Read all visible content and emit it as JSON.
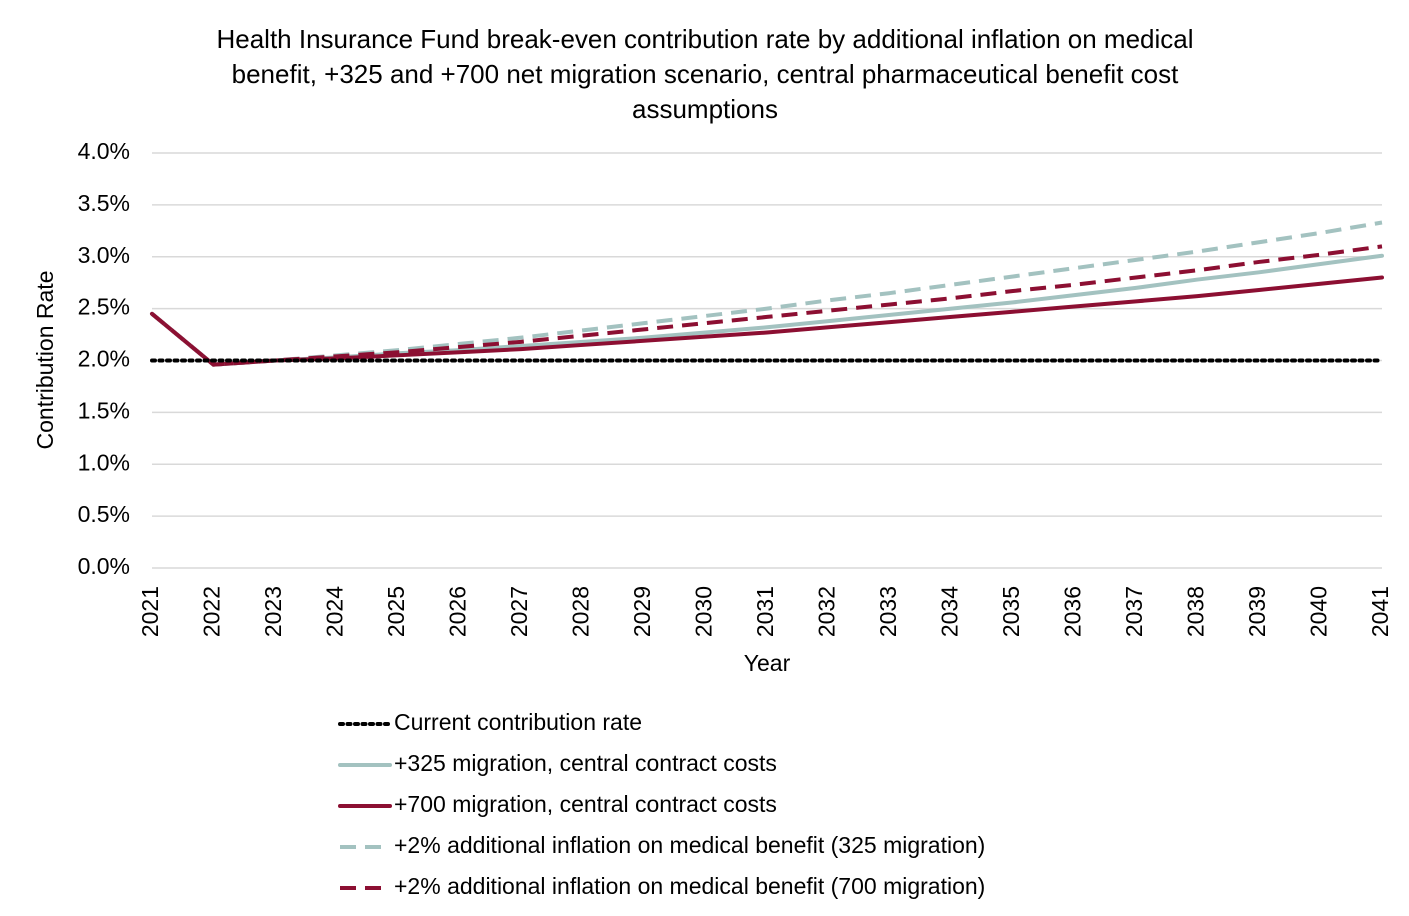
{
  "chart_data": {
    "type": "line",
    "title": "Health Insurance Fund break-even contribution rate by additional inflation on medical benefit, +325 and +700 net migration scenario, central pharmaceutical benefit cost assumptions",
    "x_label": "Year",
    "y_label": "Contribution Rate",
    "categories": [
      "2021",
      "2022",
      "2023",
      "2024",
      "2025",
      "2026",
      "2027",
      "2028",
      "2029",
      "2030",
      "2031",
      "2032",
      "2033",
      "2034",
      "2035",
      "2036",
      "2037",
      "2038",
      "2039",
      "2040",
      "2041"
    ],
    "ylim": [
      0,
      4
    ],
    "yticks": [
      {
        "value": 0,
        "label": "0.0%"
      },
      {
        "value": 0.5,
        "label": "0.5%"
      },
      {
        "value": 1,
        "label": "1.0%"
      },
      {
        "value": 1.5,
        "label": "1.5%"
      },
      {
        "value": 2,
        "label": "2.0%"
      },
      {
        "value": 2.5,
        "label": "2.5%"
      },
      {
        "value": 3,
        "label": "3.0%"
      },
      {
        "value": 3.5,
        "label": "3.5%"
      },
      {
        "value": 4,
        "label": "4.0%"
      }
    ],
    "grid": true,
    "series": [
      {
        "name": "Current contribution rate",
        "color": "#000000",
        "linestyle": "dotted",
        "values": [
          2,
          2,
          2,
          2,
          2,
          2,
          2,
          2,
          2,
          2,
          2,
          2,
          2,
          2,
          2,
          2,
          2,
          2,
          2,
          2,
          2
        ]
      },
      {
        "name": "+325 migration, central contract costs",
        "color": "#a3c2c0",
        "linestyle": "solid",
        "values": [
          2.45,
          1.96,
          2.0,
          2.03,
          2.07,
          2.1,
          2.14,
          2.18,
          2.22,
          2.27,
          2.32,
          2.38,
          2.44,
          2.5,
          2.56,
          2.63,
          2.7,
          2.78,
          2.85,
          2.93,
          3.01
        ]
      },
      {
        "name": "+700 migration, central contract costs",
        "color": "#8c0f32",
        "linestyle": "solid",
        "values": [
          2.45,
          1.96,
          2.0,
          2.02,
          2.05,
          2.08,
          2.11,
          2.15,
          2.19,
          2.23,
          2.27,
          2.32,
          2.37,
          2.42,
          2.47,
          2.52,
          2.57,
          2.62,
          2.68,
          2.74,
          2.8
        ]
      },
      {
        "name": "+2% additional inflation on medical benefit (325 migration)",
        "color": "#a3c2c0",
        "linestyle": "dashed",
        "values": [
          2.45,
          1.96,
          2.0,
          2.05,
          2.1,
          2.16,
          2.22,
          2.29,
          2.36,
          2.43,
          2.5,
          2.58,
          2.65,
          2.73,
          2.81,
          2.89,
          2.97,
          3.05,
          3.14,
          3.23,
          3.33
        ]
      },
      {
        "name": "+2% additional inflation on medical benefit (700 migration)",
        "color": "#8c0f32",
        "linestyle": "dashed",
        "values": [
          2.45,
          1.96,
          2.0,
          2.04,
          2.08,
          2.13,
          2.18,
          2.24,
          2.3,
          2.36,
          2.42,
          2.48,
          2.54,
          2.6,
          2.67,
          2.73,
          2.8,
          2.87,
          2.95,
          3.02,
          3.1
        ]
      }
    ]
  }
}
